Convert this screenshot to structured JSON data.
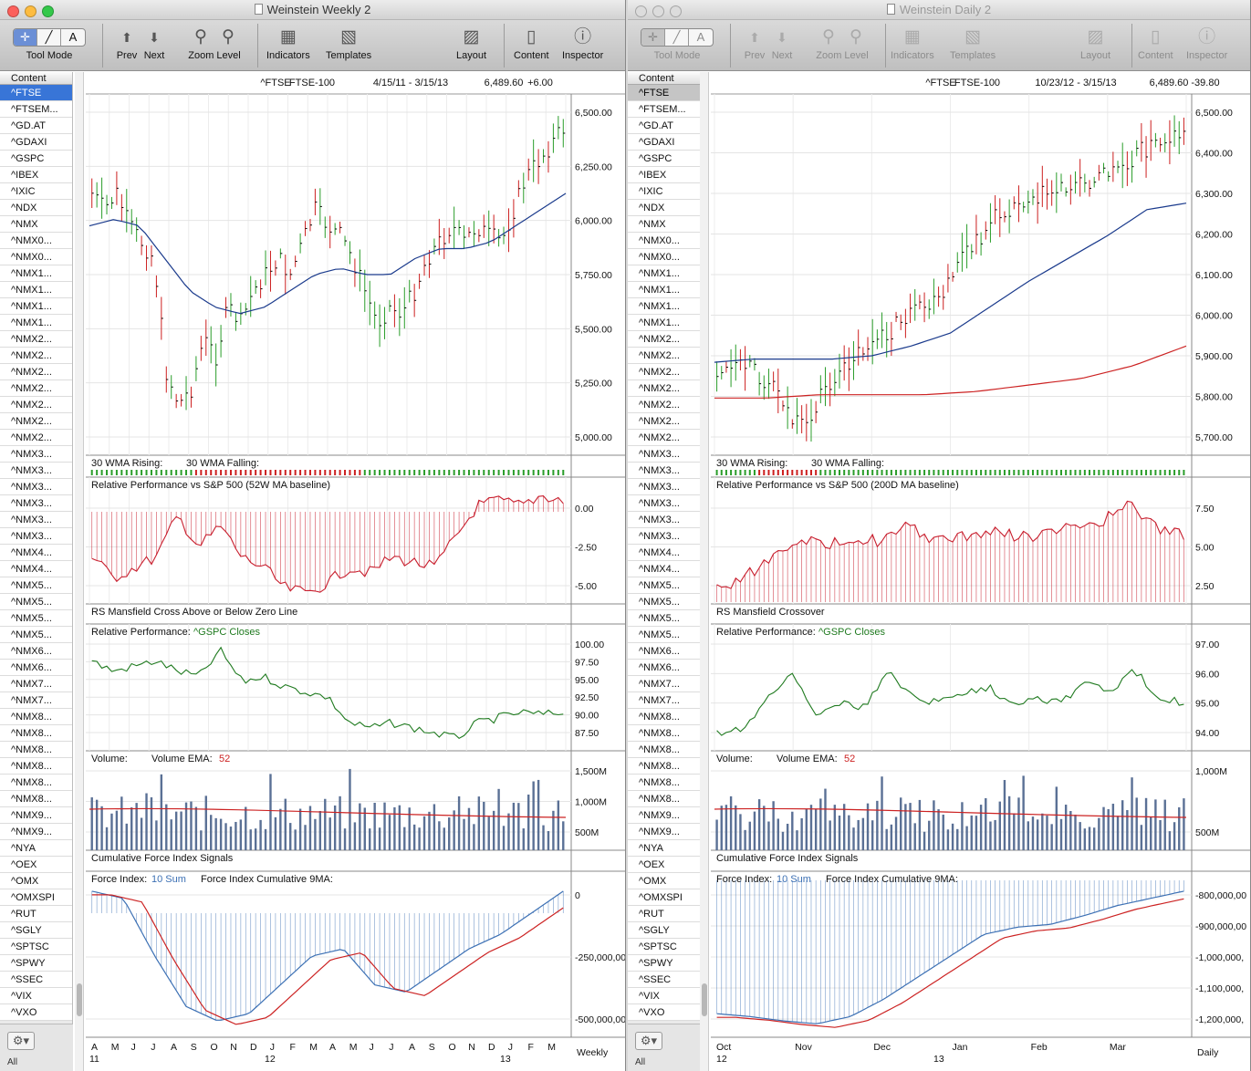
{
  "colors": {
    "accent": "#3875d7",
    "ma_blue": "#1a3a8c",
    "ma_red": "#cc2222",
    "bar_up": "#2a9d2a",
    "bar_down": "#cc1f1f",
    "rel_red": "#c81e2d",
    "rel_green": "#1f7a1f",
    "volume_bar": "#5a7095",
    "force_blue": "#3c70b4",
    "light_red": "#fc605b",
    "light_yellow": "#fdbc40",
    "light_green": "#34c84a"
  },
  "toolbar": {
    "tool_mode": "Tool Mode",
    "prev": "Prev",
    "next": "Next",
    "zoom_level": "Zoom Level",
    "indicators": "Indicators",
    "templates": "Templates",
    "layout": "Layout",
    "content": "Content",
    "inspector": "Inspector",
    "seg_labels": [
      "✛",
      "╱",
      "A"
    ]
  },
  "sidebar": {
    "header": "Content",
    "items": [
      "^FTSE",
      "^FTSEM...",
      "^GD.AT",
      "^GDAXI",
      "^GSPC",
      "^IBEX",
      "^IXIC",
      "^NDX",
      "^NMX",
      "^NMX0...",
      "^NMX0...",
      "^NMX1...",
      "^NMX1...",
      "^NMX1...",
      "^NMX1...",
      "^NMX2...",
      "^NMX2...",
      "^NMX2...",
      "^NMX2...",
      "^NMX2...",
      "^NMX2...",
      "^NMX2...",
      "^NMX3...",
      "^NMX3...",
      "^NMX3...",
      "^NMX3...",
      "^NMX3...",
      "^NMX3...",
      "^NMX4...",
      "^NMX4...",
      "^NMX5...",
      "^NMX5...",
      "^NMX5...",
      "^NMX5...",
      "^NMX6...",
      "^NMX6...",
      "^NMX7...",
      "^NMX7...",
      "^NMX8...",
      "^NMX8...",
      "^NMX8...",
      "^NMX8...",
      "^NMX8...",
      "^NMX8...",
      "^NMX9...",
      "^NMX9...",
      "^NYA",
      "^OEX",
      "^OMX",
      "^OMXSPI",
      "^RUT",
      "^SGLY",
      "^SPTSC",
      "^SPWY",
      "^SSEC",
      "^VIX",
      "^VXO"
    ],
    "all_label": "All",
    "gear": "⚙▾"
  },
  "windows": [
    {
      "title": "Weinstein Weekly 2",
      "active": true,
      "symbol": "^FTSE",
      "name": "FTSE-100",
      "range": "4/15/11 - 3/15/13",
      "last": "6,489.60",
      "change": "+6.00",
      "period": "Weekly",
      "panels": {
        "price": {
          "yticks": [
            "6,500.00",
            "6,250.00",
            "6,000.00",
            "5,750.00",
            "5,500.00",
            "5,250.00",
            "5,000.00"
          ]
        },
        "wma": {
          "rising": "30 WMA Rising:",
          "falling": "30 WMA Falling:"
        },
        "relperf": {
          "title": "Relative Performance vs S&P 500 (52W MA baseline)",
          "yticks": [
            "0.00",
            "-2.50",
            "-5.00"
          ]
        },
        "rs": {
          "title": "RS Mansfield Cross Above or Below Zero Line"
        },
        "gspc": {
          "title": "Relative Performance:",
          "sub": "^GSPC Closes",
          "yticks": [
            "100.00",
            "97.50",
            "95.00",
            "92.50",
            "90.00",
            "87.50"
          ]
        },
        "volume": {
          "title": "Volume:",
          "ema": "Volume EMA:",
          "ema_n": "52",
          "yticks": [
            "1,500M",
            "1,000M",
            "500M"
          ]
        },
        "cfi": {
          "title": "Cumulative Force Index Signals"
        },
        "force": {
          "title": "Force Index:",
          "sum": "10 Sum",
          "cum": "Force Index Cumulative 9MA:",
          "yticks": [
            "0",
            "-250,000,00",
            "-500,000,00"
          ]
        }
      },
      "xaxis": {
        "labels": [
          "A",
          "M",
          "J",
          "J",
          "A",
          "S",
          "O",
          "N",
          "D",
          "J",
          "F",
          "M",
          "A",
          "M",
          "J",
          "J",
          "A",
          "S",
          "O",
          "N",
          "D",
          "J",
          "F",
          "M"
        ],
        "years": [
          "11",
          "12",
          "13"
        ]
      }
    },
    {
      "title": "Weinstein Daily 2",
      "active": false,
      "symbol": "^FTSE",
      "name": "FTSE-100",
      "range": "10/23/12 - 3/15/13",
      "last": "6,489.60",
      "change": "-39.80",
      "period": "Daily",
      "panels": {
        "price": {
          "yticks": [
            "6,500.00",
            "6,400.00",
            "6,300.00",
            "6,200.00",
            "6,100.00",
            "6,000.00",
            "5,900.00",
            "5,800.00",
            "5,700.00"
          ]
        },
        "wma": {
          "rising": "30 WMA Rising:",
          "falling": "30 WMA Falling:"
        },
        "relperf": {
          "title": "Relative Performance vs S&P 500 (200D MA baseline)",
          "yticks": [
            "7.50",
            "5.00",
            "2.50"
          ]
        },
        "rs": {
          "title": "RS Mansfield Crossover"
        },
        "gspc": {
          "title": "Relative Performance:",
          "sub": "^GSPC Closes",
          "yticks": [
            "97.00",
            "96.00",
            "95.00",
            "94.00"
          ]
        },
        "volume": {
          "title": "Volume:",
          "ema": "Volume EMA:",
          "ema_n": "52",
          "yticks": [
            "1,000M",
            "500M"
          ]
        },
        "cfi": {
          "title": "Cumulative Force Index Signals"
        },
        "force": {
          "title": "Force Index:",
          "sum": "10 Sum",
          "cum": "Force Index Cumulative 9MA:",
          "yticks": [
            "-800,000,00",
            "-900,000,00",
            "-1,000,000,",
            "-1,100,000,",
            "-1,200,000,"
          ]
        }
      },
      "xaxis": {
        "labels": [
          "Oct",
          "Nov",
          "Dec",
          "Jan",
          "Feb",
          "Mar"
        ],
        "years": [
          "12",
          "13"
        ]
      }
    }
  ]
}
